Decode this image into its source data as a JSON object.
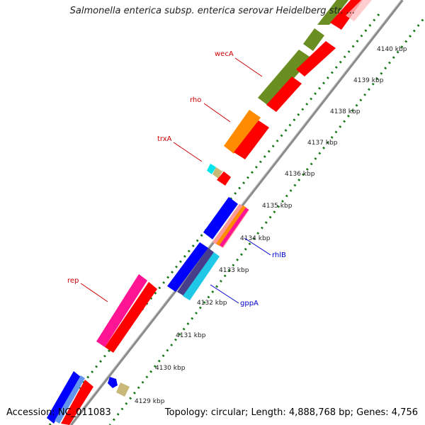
{
  "title": "Salmonella enterica subsp. enterica serovar Heidelberg str. ...",
  "footer": {
    "accession": "Accession: NC_011083",
    "summary": "Topology: circular; Length: 4,888,768 bp; Genes: 4,756"
  },
  "kbp_labels": [
    "4140 kbp",
    "4139 kbp",
    "4138 kbp",
    "4137 kbp",
    "4136 kbp",
    "4135 kbp",
    "4134 kbp",
    "4133 kbp",
    "4132 kbp",
    "4131 kbp",
    "4130 kbp",
    "4129 kbp"
  ],
  "gene_labels": {
    "wecA": "wecA",
    "rho": "rho",
    "trxA": "trxA",
    "rep": "rep",
    "rhlB": "rhlB",
    "gppA": "gppA"
  },
  "colors": {
    "backbone": "#8c8c8c",
    "tick": "#1a7a1a",
    "red": "#ff0000",
    "olive": "#6b8e23",
    "orange": "#ff8c00",
    "magenta": "#ff1493",
    "blue": "#0000ff",
    "cyan": "#1ec8e6",
    "tan": "#c8b978",
    "label_red": "#cc0000",
    "label_blue": "#0000cc"
  }
}
